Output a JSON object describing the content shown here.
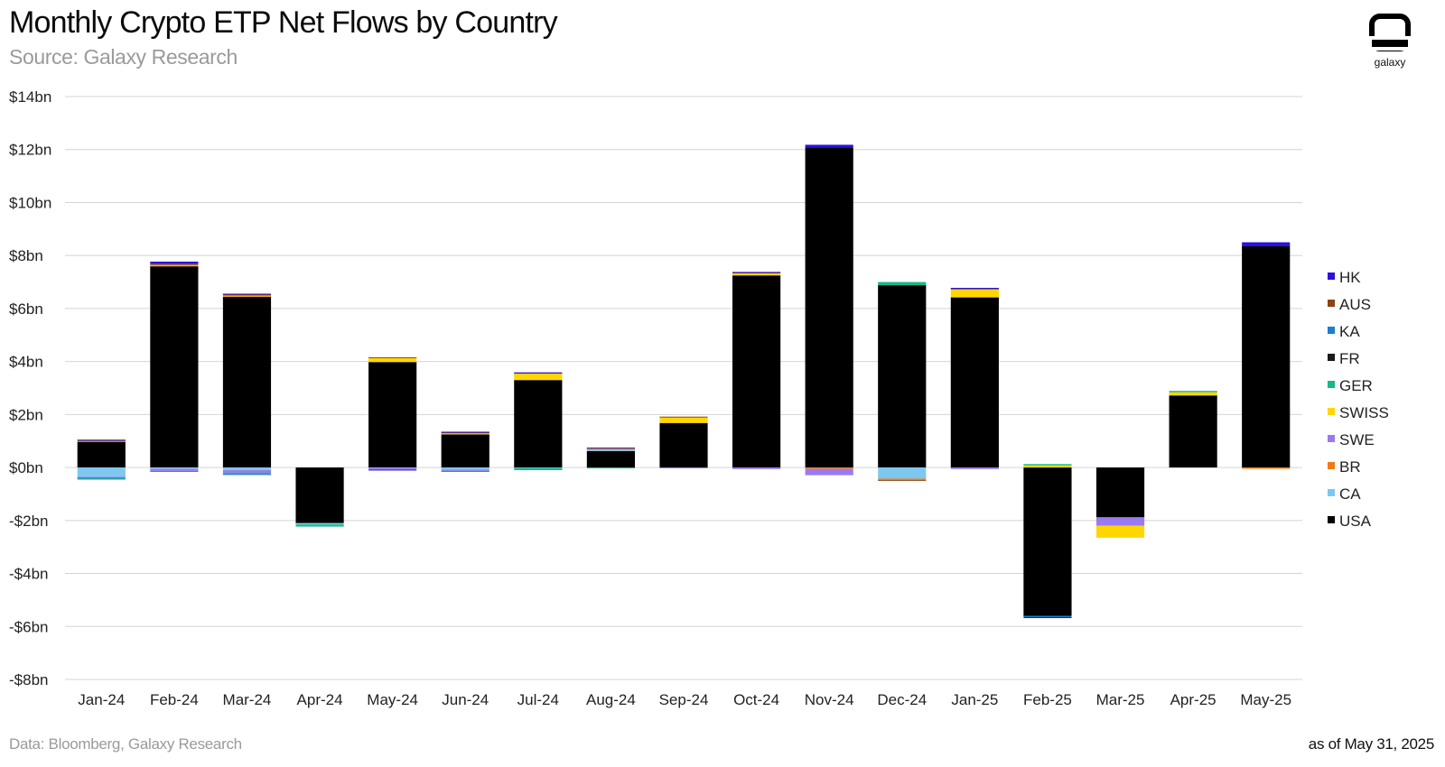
{
  "header": {
    "title": "Monthly Crypto ETP Net Flows by Country",
    "subtitle": "Source: Galaxy Research"
  },
  "logo": {
    "name": "galaxy"
  },
  "footer": {
    "data_source": "Data: Bloomberg, Galaxy Research",
    "as_of": "as of May 31, 2025"
  },
  "chart_data": {
    "type": "bar",
    "stacked": true,
    "title": "Monthly Crypto ETP Net Flows by Country",
    "subtitle": "Source: Galaxy Research",
    "xlabel": "",
    "ylabel": "",
    "ylim": [
      -8,
      14
    ],
    "y_ticks": [
      -8,
      -6,
      -4,
      -2,
      0,
      2,
      4,
      6,
      8,
      10,
      12,
      14
    ],
    "y_tick_labels": [
      "-$8bn",
      "-$6bn",
      "-$4bn",
      "-$2bn",
      "$0bn",
      "$2bn",
      "$4bn",
      "$6bn",
      "$8bn",
      "$10bn",
      "$12bn",
      "$14bn"
    ],
    "grid": true,
    "legend_position": "right",
    "categories": [
      "Jan-24",
      "Feb-24",
      "Mar-24",
      "Apr-24",
      "May-24",
      "Jun-24",
      "Jul-24",
      "Aug-24",
      "Sep-24",
      "Oct-24",
      "Nov-24",
      "Dec-24",
      "Jan-25",
      "Feb-25",
      "Mar-25",
      "Apr-25",
      "May-25"
    ],
    "series": [
      {
        "name": "USA",
        "color": "#000000",
        "values": [
          0.98,
          7.6,
          6.45,
          -2.1,
          3.98,
          1.25,
          3.3,
          0.62,
          1.68,
          7.25,
          12.08,
          6.88,
          6.42,
          -5.6,
          -1.88,
          2.72,
          8.36
        ]
      },
      {
        "name": "CA",
        "color": "#7ec8f0",
        "values": [
          -0.35,
          -0.05,
          -0.1,
          -0.05,
          -0.02,
          -0.08,
          -0.02,
          0.05,
          0,
          0,
          0,
          -0.42,
          0,
          0,
          0,
          0,
          0
        ]
      },
      {
        "name": "BR",
        "color": "#f07a1a",
        "values": [
          0,
          0.02,
          0.02,
          0,
          0,
          0,
          0,
          0.03,
          0,
          0,
          -0.05,
          -0.05,
          0,
          0,
          0,
          0,
          -0.05
        ]
      },
      {
        "name": "SWE",
        "color": "#9a7af0",
        "values": [
          -0.02,
          -0.08,
          -0.1,
          0,
          -0.06,
          -0.05,
          0,
          0,
          -0.02,
          -0.06,
          -0.24,
          0,
          -0.06,
          0,
          -0.32,
          0,
          0
        ]
      },
      {
        "name": "SWISS",
        "color": "#ffd700",
        "values": [
          0.02,
          0.02,
          0.02,
          0,
          0.16,
          0.04,
          0.24,
          0.02,
          0.22,
          0.08,
          0,
          0,
          0.3,
          0.08,
          -0.45,
          0.12,
          0
        ]
      },
      {
        "name": "GER",
        "color": "#16b88a",
        "values": [
          -0.05,
          0,
          -0.05,
          -0.08,
          0,
          0,
          -0.08,
          -0.02,
          0,
          0,
          0,
          0.12,
          0,
          0.05,
          0,
          0.05,
          0
        ]
      },
      {
        "name": "FR",
        "color": "#1a1a1a",
        "values": [
          0,
          0,
          0,
          0,
          0,
          0,
          0,
          0,
          0,
          0,
          0,
          0,
          0,
          0,
          0,
          0,
          0
        ]
      },
      {
        "name": "KA",
        "color": "#1a7fd0",
        "values": [
          -0.01,
          -0.02,
          -0.02,
          0,
          0,
          -0.03,
          0,
          0,
          0,
          0,
          0,
          0,
          0,
          -0.05,
          0,
          0,
          0
        ]
      },
      {
        "name": "AUS",
        "color": "#8b4513",
        "values": [
          0.03,
          0.05,
          0.06,
          0,
          0.02,
          0.05,
          0.04,
          0.02,
          0.02,
          0.03,
          0,
          -0.03,
          0.04,
          0,
          0,
          0,
          0
        ]
      },
      {
        "name": "HK",
        "color": "#2a10e0",
        "values": [
          0.02,
          0.08,
          0.01,
          0,
          -0.03,
          0.01,
          0.01,
          0.01,
          0,
          0.02,
          0.1,
          0,
          0.02,
          -0.03,
          0,
          0,
          0.14
        ]
      }
    ],
    "legend_order": [
      "HK",
      "AUS",
      "KA",
      "FR",
      "GER",
      "SWISS",
      "SWE",
      "BR",
      "CA",
      "USA"
    ]
  }
}
